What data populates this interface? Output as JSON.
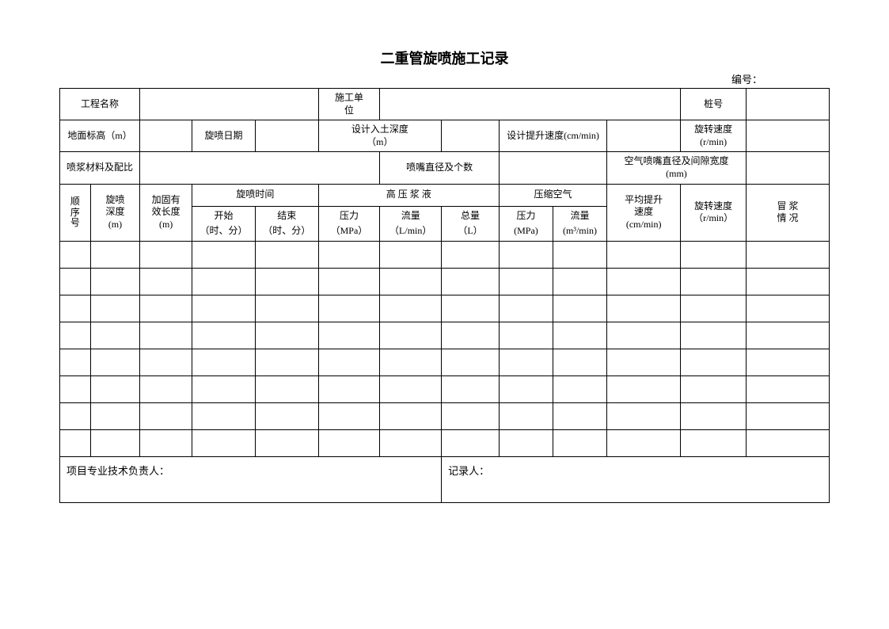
{
  "title": "二重管旋喷施工记录",
  "number_label": "编号：",
  "row1": {
    "project_name": "工程名称",
    "construction_unit": "施工单\n位",
    "pile_no": "桩号"
  },
  "row2": {
    "ground_elev": "地面标高（m）",
    "jet_date": "旋喷日期",
    "design_depth": "设计入土深度\n（m）",
    "design_lift_speed": "设计提升速度(cm/min)",
    "rot_speed": "旋转速度\n(r/min)"
  },
  "row3": {
    "grout_material": "喷浆材料及配比",
    "nozzle_diam_count": "喷嘴直径及个数",
    "air_nozzle": "空气喷嘴直径及间隙宽度\n(mm)"
  },
  "hdr": {
    "seq": "顺\n序\n号",
    "jet_depth": "旋喷\n深度\n(m)",
    "reinforce_len": "加固有\n效长度\n(m)",
    "jet_time": "旋喷时间",
    "start": "开始",
    "end": "结束",
    "hm": "（时、分）",
    "hp_grout": "高 压 浆 液",
    "pressure": "压力",
    "mpa": "（MPa）",
    "mpa2": "(MPa)",
    "flow": "流量",
    "lmin": "（L/min）",
    "total": "总量",
    "l": "（L）",
    "comp_air": "压缩空气",
    "m3min": "(m³/min)",
    "avg_lift": "平均提升\n速度\n(cm/min)",
    "rot_speed2": "旋转速度\n（r/min）",
    "grout_overflow": "冒 浆\n情 况"
  },
  "footer": {
    "tech_lead": "项目专业技术负责人：",
    "recorder": "记录人："
  },
  "data_row_count": 8,
  "col_count": 13,
  "styling": {
    "border_color": "#000000",
    "background_color": "#ffffff",
    "font_family": "SimSun",
    "title_fontsize": 18,
    "body_fontsize": 12
  }
}
